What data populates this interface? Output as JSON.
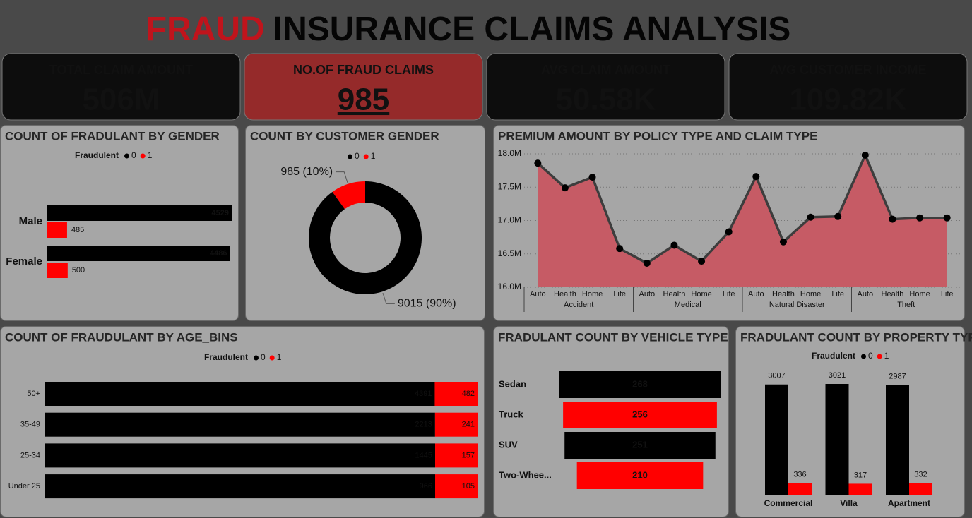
{
  "header": {
    "highlight": "FRAUD",
    "title": "INSURANCE CLAIMS ANALYSIS"
  },
  "kpis": [
    {
      "label": "TOTAL CLAIM AMOUNT",
      "value": "506M"
    },
    {
      "label": "NO.OF FRAUD CLAIMS",
      "value": "985"
    },
    {
      "label": "AVG CLAIM AMOUNT",
      "value": "50.58K"
    },
    {
      "label": "AVG CUSTOMER INCOME",
      "value": "109.82K"
    }
  ],
  "chart_data": [
    {
      "type": "hbar",
      "title": "COUNT OF FRADULANT BY GENDER",
      "legend_title": "Fraudulent",
      "categories": [
        "Male",
        "Female"
      ],
      "series": [
        {
          "name": "0",
          "color": "#000000",
          "values": [
            4529,
            4486
          ]
        },
        {
          "name": "1",
          "color": "#ff0000",
          "values": [
            485,
            500
          ]
        }
      ]
    },
    {
      "type": "donut",
      "title": "COUNT BY CUSTOMER GENDER",
      "categories": [
        "0",
        "1"
      ],
      "values": [
        9015,
        985
      ],
      "value_labels": [
        "9015 (90%)",
        "985 (10%)"
      ],
      "colors": [
        "#000000",
        "#ff0000"
      ]
    },
    {
      "type": "area",
      "title": "PREMIUM AMOUNT BY POLICY TYPE AND CLAIM TYPE",
      "category_groups": [
        "Accident",
        "Medical",
        "Natural Disaster",
        "Theft"
      ],
      "categories": [
        "Auto",
        "Health",
        "Home",
        "Life",
        "Auto",
        "Health",
        "Home",
        "Life",
        "Auto",
        "Health",
        "Home",
        "Life",
        "Auto",
        "Health",
        "Home",
        "Life"
      ],
      "values": [
        17860000,
        17490000,
        17650000,
        16580000,
        16360000,
        16630000,
        16390000,
        16830000,
        17660000,
        16680000,
        17050000,
        17060000,
        17980000,
        17020000,
        17040000,
        17040000
      ],
      "color": "#c65b65",
      "line_color": "#3d3d3d",
      "grid": true,
      "ylim": [
        16000000,
        18100000
      ],
      "yticks": [
        {
          "value": 16000000,
          "label": "16.0M"
        },
        {
          "value": 16500000,
          "label": "16.5M"
        },
        {
          "value": 17000000,
          "label": "17.0M"
        },
        {
          "value": 17500000,
          "label": "17.5M"
        },
        {
          "value": 18000000,
          "label": "18.0M"
        }
      ]
    },
    {
      "type": "hbar",
      "stack": "percent",
      "title": "COUNT OF FRAUDULANT BY AGE_BINS",
      "legend_title": "Fraudulent",
      "categories": [
        "50+",
        "35-49",
        "25-34",
        "Under 25"
      ],
      "series": [
        {
          "name": "0",
          "color": "#000000",
          "values": [
            4391,
            2213,
            1445,
            966
          ]
        },
        {
          "name": "1",
          "color": "#ff0000",
          "values": [
            482,
            241,
            157,
            105
          ]
        }
      ]
    },
    {
      "type": "funnel",
      "title": "FRADULANT COUNT BY VEHICLE TYPE",
      "categories": [
        "Sedan",
        "Truck",
        "SUV",
        "Two-Whee..."
      ],
      "values": [
        268,
        256,
        251,
        210
      ],
      "colors": [
        "#000000",
        "#ff0000",
        "#000000",
        "#ff0000"
      ]
    },
    {
      "type": "column",
      "title": "FRADULANT COUNT BY PROPERTY TYPE",
      "legend_title": "Fraudulent",
      "categories": [
        "Commercial",
        "Villa",
        "Apartment"
      ],
      "series": [
        {
          "name": "0",
          "color": "#000000",
          "values": [
            3007,
            3021,
            2987
          ]
        },
        {
          "name": "1",
          "color": "#ff0000",
          "values": [
            336,
            317,
            332
          ]
        }
      ]
    }
  ]
}
